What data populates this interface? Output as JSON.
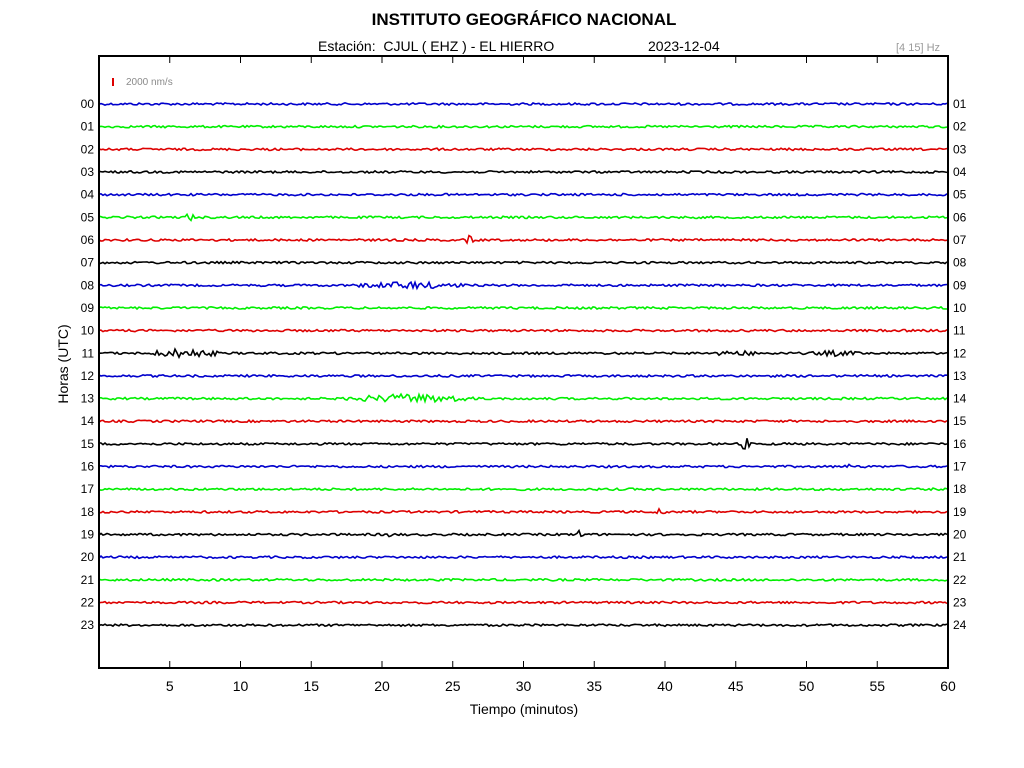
{
  "header": {
    "title": "INSTITUTO GEOGRÁFICO NACIONAL",
    "station_text": "Estación:  CJUL ( EHZ ) - EL HIERRO",
    "date": "2023-12-04",
    "filter": "[4 15] Hz"
  },
  "chart_data": {
    "type": "line",
    "title": "INSTITUTO GEOGRÁFICO NACIONAL",
    "xlabel": "Tiempo (minutos)",
    "ylabel": "Horas (UTC)",
    "xlim": [
      0,
      60
    ],
    "x_ticks": [
      5,
      10,
      15,
      20,
      25,
      30,
      35,
      40,
      45,
      50,
      55,
      60
    ],
    "left_hour_labels": [
      "00",
      "01",
      "02",
      "03",
      "04",
      "05",
      "06",
      "07",
      "08",
      "09",
      "10",
      "11",
      "12",
      "13",
      "14",
      "15",
      "16",
      "17",
      "18",
      "19",
      "20",
      "21",
      "22",
      "23"
    ],
    "right_hour_labels": [
      "01",
      "02",
      "03",
      "04",
      "05",
      "06",
      "07",
      "08",
      "09",
      "10",
      "11",
      "12",
      "13",
      "14",
      "15",
      "16",
      "17",
      "18",
      "19",
      "20",
      "21",
      "22",
      "23",
      "24"
    ],
    "trace_colors": [
      "#0000cc",
      "#00ee00",
      "#dd0000",
      "#000000"
    ],
    "scale_bar_label": "2000 nm/s",
    "scale_bar_color": "#dd0000",
    "events": [
      {
        "hour": 5,
        "minute": 6.4,
        "amp": 6
      },
      {
        "hour": 6,
        "minute": 26.2,
        "amp": 5
      },
      {
        "hour": 8,
        "minute": 22.0,
        "amp": 4,
        "span": 8
      },
      {
        "hour": 11,
        "minute": 6.0,
        "amp": 5,
        "span": 5
      },
      {
        "hour": 11,
        "minute": 45.0,
        "amp": 3,
        "span": 4
      },
      {
        "hour": 11,
        "minute": 52.0,
        "amp": 3,
        "span": 4
      },
      {
        "hour": 13,
        "minute": 22.0,
        "amp": 5,
        "span": 9
      },
      {
        "hour": 15,
        "minute": 45.7,
        "amp": 8
      },
      {
        "hour": 16,
        "minute": 53.0,
        "amp": 3
      },
      {
        "hour": 18,
        "minute": 39.7,
        "amp": 5
      },
      {
        "hour": 19,
        "minute": 34.0,
        "amp": 5
      },
      {
        "hour": 19,
        "minute": 20.5,
        "amp": 3
      }
    ]
  }
}
